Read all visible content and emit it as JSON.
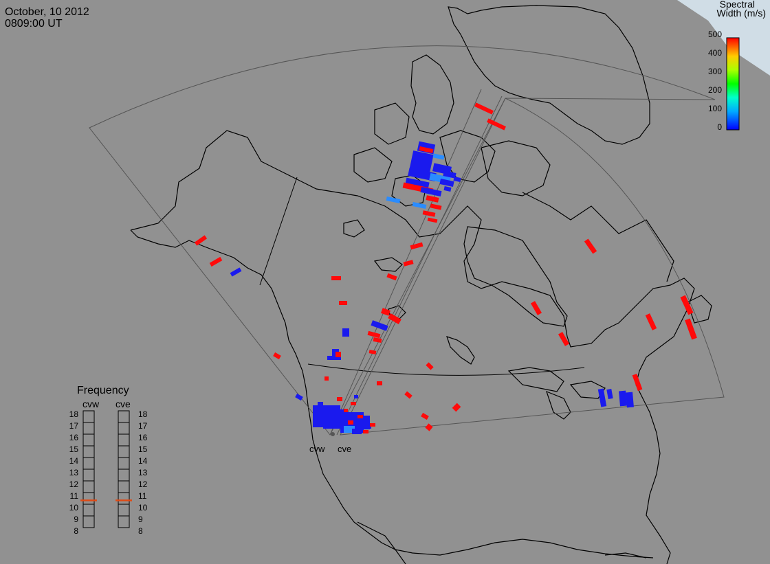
{
  "header": {
    "date": "October, 10 2012",
    "time": "0809:00 UT"
  },
  "colorbar": {
    "title_line1": "Spectral",
    "title_line2": "Width (m/s)",
    "ticks": [
      "500",
      "400",
      "300",
      "200",
      "100",
      "0"
    ],
    "min": 0,
    "max": 500
  },
  "frequency": {
    "title": "Frequency",
    "radars": [
      "cvw",
      "cve"
    ],
    "ticks": [
      "18",
      "17",
      "16",
      "15",
      "14",
      "13",
      "12",
      "11",
      "10",
      "9",
      "8"
    ],
    "values": [
      10.8,
      10.8
    ],
    "indicator_color": "#e04a14"
  },
  "radars": [
    "cvw",
    "cve"
  ],
  "colors": {
    "background": "#919191",
    "coastline": "#000000",
    "fov": "#555555",
    "polar_cap": "#d0dde6",
    "red": "#ff0a0a",
    "blue": "#1a1aee",
    "light_blue": "#2a8cff"
  }
}
